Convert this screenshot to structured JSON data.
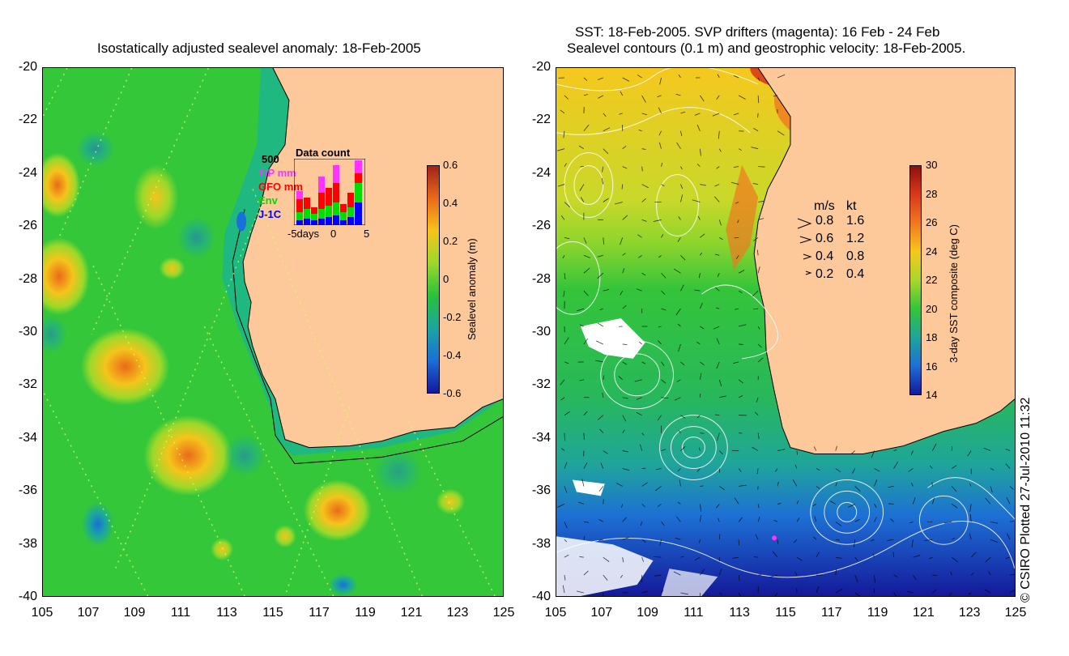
{
  "left": {
    "title": "Isostatically adjusted sealevel anomaly: 18-Feb-2005",
    "y_ticks": [
      "-20",
      "-22",
      "-24",
      "-26",
      "-28",
      "-30",
      "-32",
      "-34",
      "-36",
      "-38",
      "-40"
    ],
    "x_ticks": [
      "105",
      "107",
      "109",
      "111",
      "113",
      "115",
      "117",
      "119",
      "121",
      "123",
      "125"
    ],
    "colorbar": {
      "ticks": [
        "0.6",
        "0.4",
        "0.2",
        "0",
        "-0.2",
        "-0.4",
        "-0.6"
      ],
      "label": "Sealevel anomaly (m)",
      "colors": [
        "#a3211a",
        "#ea6a19",
        "#f5c41b",
        "#9bd92a",
        "#28c23a",
        "#1aa6a0",
        "#1a6fd8",
        "#1418a0"
      ]
    },
    "inset": {
      "title": "Data count",
      "max_label": "500",
      "legend": [
        {
          "label": "T/P mm",
          "color": "#ff33ff"
        },
        {
          "label": "GFO mm",
          "color": "#ff0000"
        },
        {
          "label": "Env",
          "color": "#00dd00"
        },
        {
          "label": "J-1C",
          "color": "#0000ff"
        }
      ],
      "x_labels": [
        "-5days",
        "0",
        "5"
      ]
    }
  },
  "right": {
    "title_line1": "SST: 18-Feb-2005. SVP drifters (magenta): 16 Feb - 24 Feb",
    "title_line2": "Sealevel contours (0.1 m) and geostrophic velocity: 18-Feb-2005.",
    "y_ticks": [
      "-20",
      "-22",
      "-24",
      "-26",
      "-28",
      "-30",
      "-32",
      "-34",
      "-36",
      "-38",
      "-40"
    ],
    "x_ticks": [
      "105",
      "107",
      "109",
      "111",
      "113",
      "115",
      "117",
      "119",
      "121",
      "123",
      "125"
    ],
    "colorbar": {
      "ticks": [
        "30",
        "28",
        "26",
        "24",
        "22",
        "20",
        "18",
        "16",
        "14"
      ],
      "label": "3-day SST composite (deg C)",
      "colors": [
        "#8b1010",
        "#d83a1a",
        "#f07820",
        "#f5c81e",
        "#a8d82a",
        "#34c43a",
        "#1fa59a",
        "#1d6fd4",
        "#15199a"
      ]
    },
    "speed_legend": {
      "header_ms": "m/s",
      "header_kt": "kt",
      "rows": [
        {
          "ms": "0.8",
          "kt": "1.6"
        },
        {
          "ms": "0.6",
          "kt": "1.2"
        },
        {
          "ms": "0.4",
          "kt": "0.8"
        },
        {
          "ms": "0.2",
          "kt": "0.4"
        }
      ]
    }
  },
  "credit": "© CSIRO Plotted 27-Jul-2010 11:32",
  "land_color": "#fdc89a"
}
